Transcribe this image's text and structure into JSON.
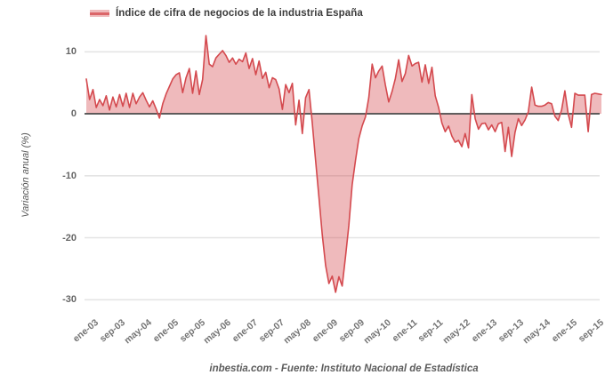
{
  "chart_data": {
    "type": "area",
    "title": "",
    "legend": "Índice de cifra de negocios de la industria España",
    "ylabel": "Variación anual (%)",
    "xlabel": "",
    "x_unit": "monthly",
    "x_start": "ene-03",
    "x_end": "dic-15",
    "x_tick_labels": [
      "ene-03",
      "sep-03",
      "may-04",
      "ene-05",
      "sep-05",
      "may-06",
      "ene-07",
      "sep-07",
      "may-08",
      "ene-09",
      "sep-09",
      "may-10",
      "ene-11",
      "sep-11",
      "may-12",
      "ene-13",
      "sep-13",
      "may-14",
      "ene-15",
      "sep-15"
    ],
    "x_tick_every": 8,
    "y_ticks": [
      10,
      0,
      -10,
      -20,
      -30
    ],
    "ylim": [
      -31,
      13
    ],
    "grid": true,
    "legend_position": "top",
    "values": [
      5.6,
      2.3,
      3.9,
      1.0,
      2.3,
      1.3,
      2.9,
      0.6,
      2.7,
      1.1,
      3.1,
      1.2,
      3.3,
      1.0,
      3.3,
      1.6,
      2.7,
      3.4,
      2.2,
      1.1,
      2.1,
      0.8,
      -0.7,
      1.6,
      3.2,
      4.4,
      5.6,
      6.3,
      6.6,
      3.4,
      5.8,
      7.3,
      3.3,
      6.9,
      3.1,
      5.5,
      12.6,
      8.0,
      7.6,
      9.0,
      9.6,
      10.2,
      9.4,
      8.3,
      9.0,
      8.0,
      8.8,
      8.4,
      9.8,
      7.3,
      8.9,
      6.3,
      8.5,
      5.7,
      6.7,
      4.2,
      5.8,
      5.5,
      4.0,
      0.7,
      4.7,
      3.4,
      4.9,
      -1.8,
      2.2,
      -3.2,
      2.6,
      3.9,
      -1.5,
      -7.5,
      -13.5,
      -19.5,
      -24.5,
      -27.4,
      -26.2,
      -28.8,
      -26.3,
      -27.8,
      -23.0,
      -18.0,
      -11.5,
      -7.5,
      -4.0,
      -2.0,
      -0.5,
      2.6,
      8.0,
      5.8,
      6.9,
      7.7,
      4.6,
      1.9,
      3.6,
      5.7,
      8.7,
      5.2,
      6.5,
      9.4,
      7.7,
      8.1,
      8.3,
      5.1,
      7.9,
      4.9,
      7.5,
      2.9,
      1.0,
      -1.5,
      -2.9,
      -2.0,
      -3.6,
      -4.6,
      -4.3,
      -5.3,
      -3.2,
      -5.5,
      3.1,
      -0.8,
      -2.5,
      -1.6,
      -1.5,
      -2.6,
      -1.8,
      -2.9,
      -1.6,
      -1.4,
      -6.1,
      -2.2,
      -6.9,
      -3.0,
      -0.8,
      -1.9,
      -1.0,
      0.3,
      4.3,
      1.4,
      1.2,
      1.2,
      1.4,
      1.8,
      1.6,
      -0.4,
      -1.1,
      0.6,
      3.7,
      0.0,
      -2.2,
      3.3,
      3.0,
      3.0,
      3.0,
      -2.9,
      3.1,
      3.3,
      3.2,
      3.1
    ],
    "colors": {
      "line": "#d4494e",
      "fill": "rgba(212,73,78,0.38)",
      "grid": "#e4e4e4",
      "zero_line": "#4a4a4a",
      "y_tick_text": "#666666",
      "x_tick_text": "#757575",
      "axis_title": "#555555",
      "legend_text": "#3c3c3c",
      "footer_text": "#5d5d5d",
      "background": "#ffffff"
    }
  },
  "footer": {
    "text": "inbestia.com - Fuente: Instituto Nacional de Estadística"
  }
}
